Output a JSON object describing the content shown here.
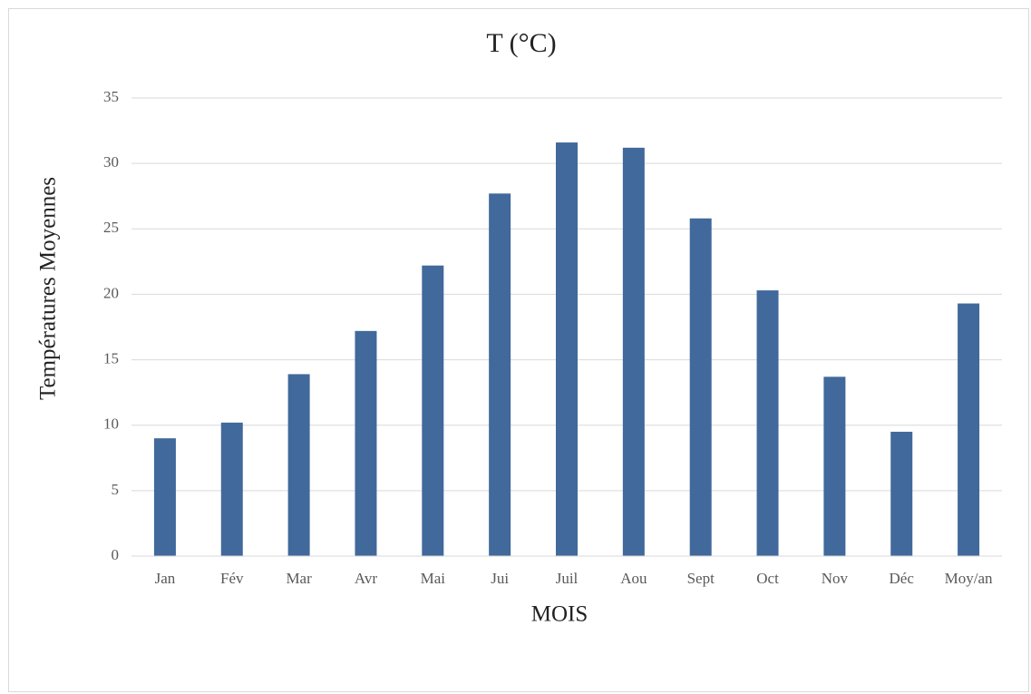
{
  "chart_data": {
    "type": "bar",
    "title": "T (°C)",
    "x_label": "MOIS",
    "y_label": "Températures Moyennes",
    "categories": [
      "Jan",
      "Fév",
      "Mar",
      "Avr",
      "Mai",
      "Jui",
      "Juil",
      "Aou",
      "Sept",
      "Oct",
      "Nov",
      "Déc",
      "Moy/an"
    ],
    "values": [
      9.0,
      10.2,
      13.9,
      17.2,
      22.2,
      27.7,
      31.6,
      31.2,
      25.8,
      20.3,
      13.7,
      9.5,
      19.3
    ],
    "color": "#41699b",
    "ylim": [
      0,
      35
    ],
    "yticks": [
      0,
      5,
      10,
      15,
      20,
      25,
      30,
      35
    ],
    "grid": true
  }
}
